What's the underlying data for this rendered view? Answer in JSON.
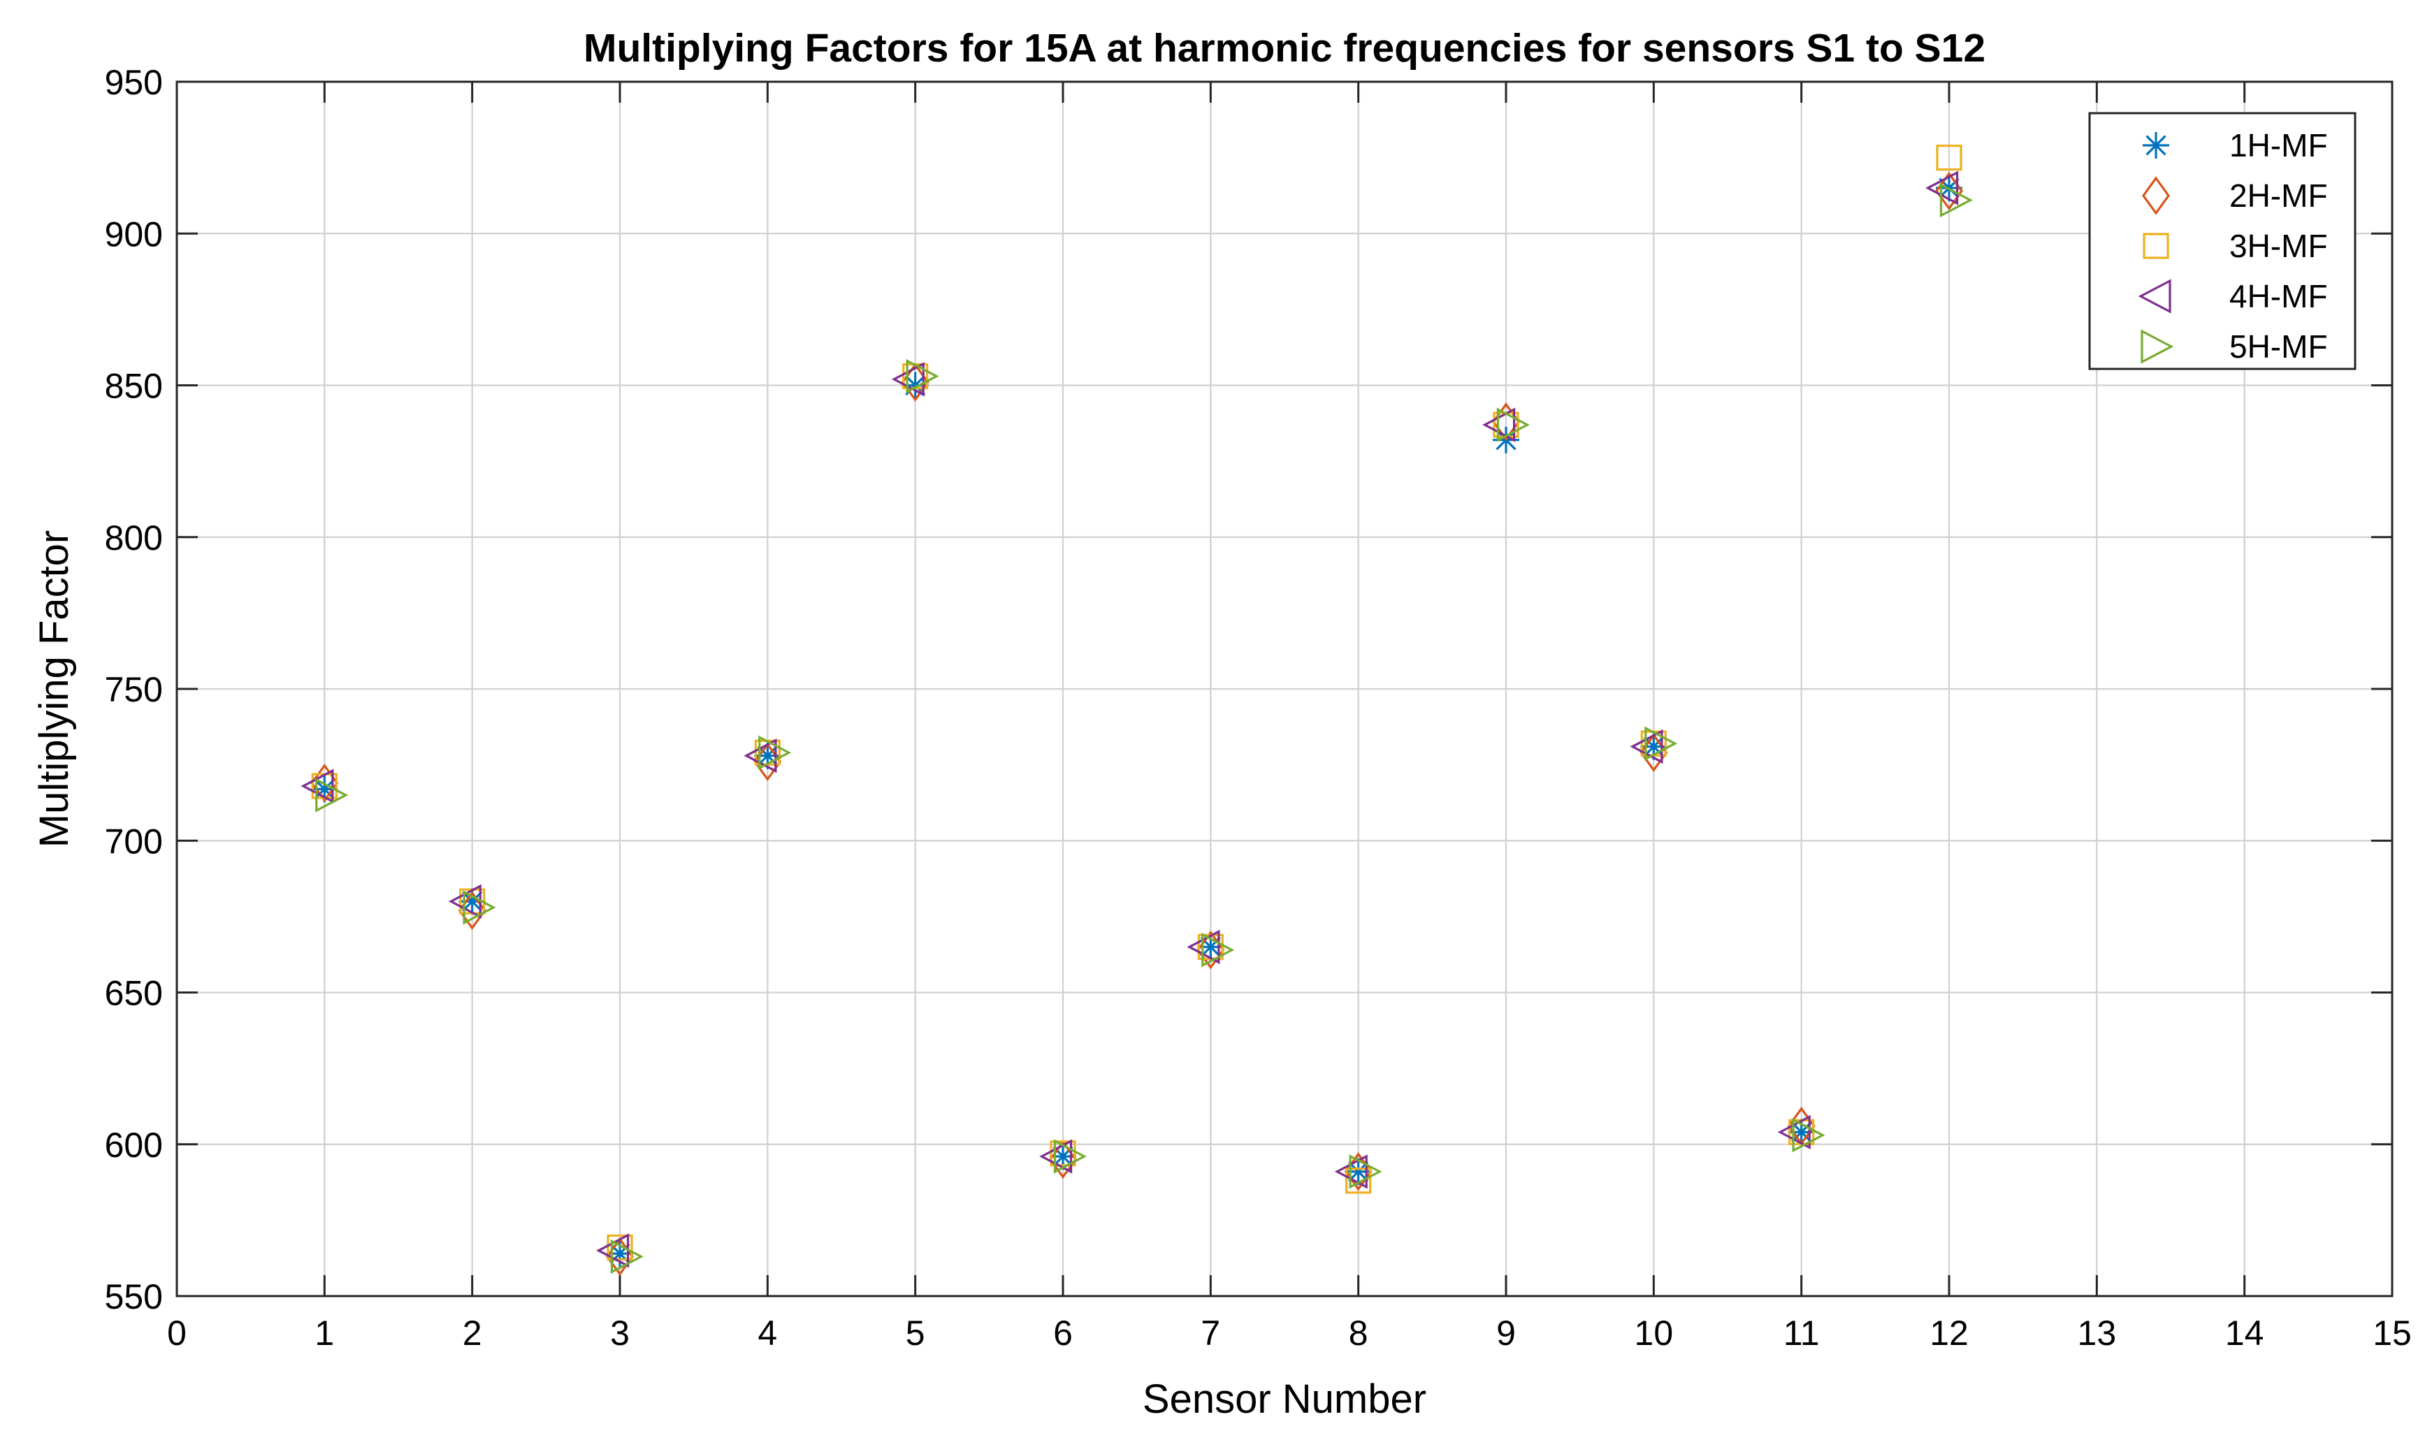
{
  "chart_data": {
    "type": "scatter",
    "title": "Multiplying Factors for 15A at harmonic frequencies for sensors S1 to S12",
    "xlabel": "Sensor Number",
    "ylabel": "Multiplying Factor",
    "xlim": [
      0,
      15
    ],
    "ylim": [
      550,
      950
    ],
    "xticks": [
      0,
      1,
      2,
      3,
      4,
      5,
      6,
      7,
      8,
      9,
      10,
      11,
      12,
      13,
      14,
      15
    ],
    "yticks": [
      550,
      600,
      650,
      700,
      750,
      800,
      850,
      900,
      950
    ],
    "grid": true,
    "legend_location": "top-right",
    "x": [
      1,
      2,
      3,
      4,
      5,
      6,
      7,
      8,
      9,
      10,
      11,
      12
    ],
    "series": [
      {
        "name": "1H-MF",
        "marker": "asterisk",
        "color": "#0072BD",
        "x_offset": 0,
        "values": [
          717,
          680,
          564,
          728,
          850,
          596,
          665,
          591,
          832,
          731,
          604,
          915
        ]
      },
      {
        "name": "2H-MF",
        "marker": "diamond",
        "color": "#D95319",
        "x_offset": 0,
        "values": [
          719,
          677,
          563,
          726,
          851,
          595,
          664,
          591,
          838,
          729,
          606,
          914
        ]
      },
      {
        "name": "3H-MF",
        "marker": "square",
        "color": "#EDB120",
        "x_offset": 0,
        "values": [
          718,
          680,
          566,
          729,
          853,
          597,
          665,
          588,
          837,
          732,
          604,
          925
        ]
      },
      {
        "name": "4H-MF",
        "marker": "triangle-left",
        "color": "#7E2F8E",
        "x_offset": -0.04,
        "values": [
          718,
          680,
          565,
          728,
          852,
          596,
          665,
          591,
          837,
          731,
          604,
          915
        ]
      },
      {
        "name": "5H-MF",
        "marker": "triangle-right",
        "color": "#77AC30",
        "x_offset": 0.04,
        "values": [
          715,
          678,
          563,
          729,
          853,
          596,
          664,
          591,
          837,
          732,
          603,
          911
        ]
      }
    ]
  }
}
